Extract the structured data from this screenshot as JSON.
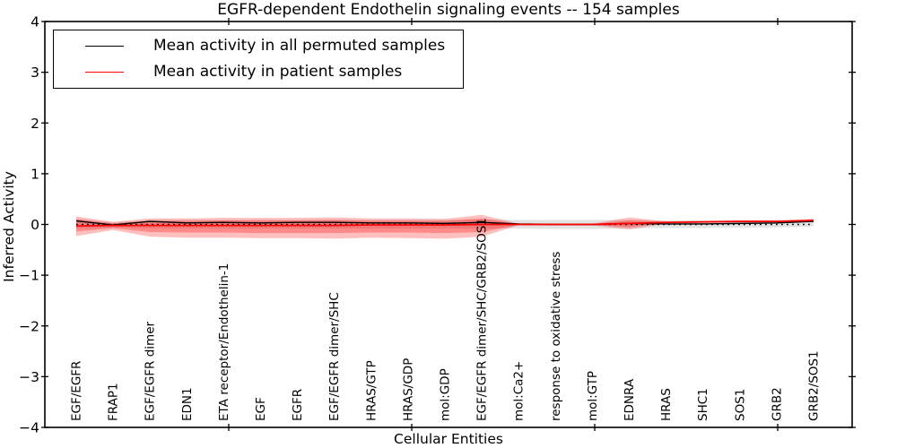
{
  "chart_data": {
    "type": "line",
    "title": "EGFR-dependent Endothelin signaling events -- 154 samples",
    "xlabel": "Cellular Entities",
    "ylabel": "Inferred Activity",
    "ylim": [
      -4,
      4
    ],
    "yticks": [
      4,
      3,
      2,
      1,
      0,
      -1,
      -2,
      -3,
      -4
    ],
    "ytick_labels": [
      "4",
      "3",
      "2",
      "1",
      "0",
      "−1",
      "−2",
      "−3",
      "−4"
    ],
    "grid": false,
    "legend_position": "upper-left",
    "categories": [
      "EGF/EGFR",
      "FRAP1",
      "EGF/EGFR dimer",
      "EDN1",
      "ETA receptor/Endothelin-1",
      "EGF",
      "EGFR",
      "EGF/EGFR dimer/SHC",
      "HRAS/GTP",
      "HRAS/GDP",
      "mol:GDP",
      "EGF/EGFR dimer/SHC/GRB2/SOS1",
      "mol:Ca2+",
      "response to oxidative stress",
      "mol:GTP",
      "EDNRA",
      "HRAS",
      "SHC1",
      "SOS1",
      "GRB2",
      "GRB2/SOS1"
    ],
    "zero_line": {
      "y": 0,
      "style": "dotted",
      "color": "#000000"
    },
    "series": [
      {
        "name": "Mean activity in all permuted samples",
        "color": "#000000",
        "values": [
          0.07,
          -0.01,
          0.06,
          0.03,
          0.04,
          0.03,
          0.04,
          0.04,
          0.03,
          0.03,
          0.02,
          0.04,
          0.01,
          0.0,
          0.0,
          0.02,
          0.01,
          0.01,
          0.02,
          0.03,
          0.06
        ]
      },
      {
        "name": "Mean activity in patient samples",
        "color": "#ff0000",
        "values": [
          -0.03,
          -0.02,
          -0.02,
          -0.02,
          -0.02,
          -0.02,
          -0.02,
          -0.02,
          -0.01,
          -0.01,
          -0.01,
          0.0,
          0.0,
          0.0,
          0.0,
          0.02,
          0.04,
          0.05,
          0.06,
          0.06,
          0.08
        ]
      }
    ],
    "bands": [
      {
        "name": "permuted-std-band",
        "color": "#000000",
        "opacity": 0.11,
        "upper": [
          0.1,
          0.04,
          0.09,
          0.09,
          0.09,
          0.09,
          0.09,
          0.09,
          0.09,
          0.09,
          0.09,
          0.1,
          0.09,
          0.09,
          0.09,
          0.09,
          0.08,
          0.08,
          0.08,
          0.08,
          0.09
        ],
        "lower": [
          -0.08,
          -0.06,
          -0.08,
          -0.08,
          -0.08,
          -0.08,
          -0.08,
          -0.08,
          -0.08,
          -0.08,
          -0.08,
          -0.08,
          -0.08,
          -0.09,
          -0.09,
          -0.08,
          -0.07,
          -0.07,
          -0.06,
          -0.06,
          -0.04
        ]
      },
      {
        "name": "patient-band-outer",
        "color": "#ff0000",
        "opacity": 0.25,
        "upper": [
          0.16,
          0.05,
          0.12,
          0.12,
          0.13,
          0.13,
          0.13,
          0.14,
          0.12,
          0.12,
          0.11,
          0.19,
          0.015,
          0.015,
          0.015,
          0.14,
          0.06,
          0.07,
          0.08,
          0.08,
          0.11
        ],
        "lower": [
          -0.23,
          -0.11,
          -0.24,
          -0.26,
          -0.26,
          -0.27,
          -0.27,
          -0.28,
          -0.26,
          -0.27,
          -0.28,
          -0.24,
          -0.015,
          -0.015,
          -0.015,
          -0.1,
          0.02,
          0.03,
          0.04,
          0.04,
          0.05
        ]
      },
      {
        "name": "patient-band-inner",
        "color": "#ff0000",
        "opacity": 0.28,
        "upper": [
          0.11,
          0.02,
          0.07,
          0.07,
          0.08,
          0.08,
          0.08,
          0.09,
          0.07,
          0.07,
          0.07,
          0.12,
          0.008,
          0.008,
          0.008,
          0.08,
          0.05,
          0.06,
          0.07,
          0.07,
          0.09
        ],
        "lower": [
          -0.14,
          -0.07,
          -0.15,
          -0.16,
          -0.16,
          -0.17,
          -0.17,
          -0.17,
          -0.16,
          -0.16,
          -0.17,
          -0.15,
          -0.008,
          -0.008,
          -0.008,
          -0.05,
          0.03,
          0.04,
          0.05,
          0.05,
          0.06
        ]
      }
    ],
    "legend": {
      "entries": [
        {
          "label": "Mean activity in all permuted samples",
          "color": "#000000"
        },
        {
          "label": "Mean activity in patient samples",
          "color": "#ff0000"
        }
      ]
    }
  }
}
